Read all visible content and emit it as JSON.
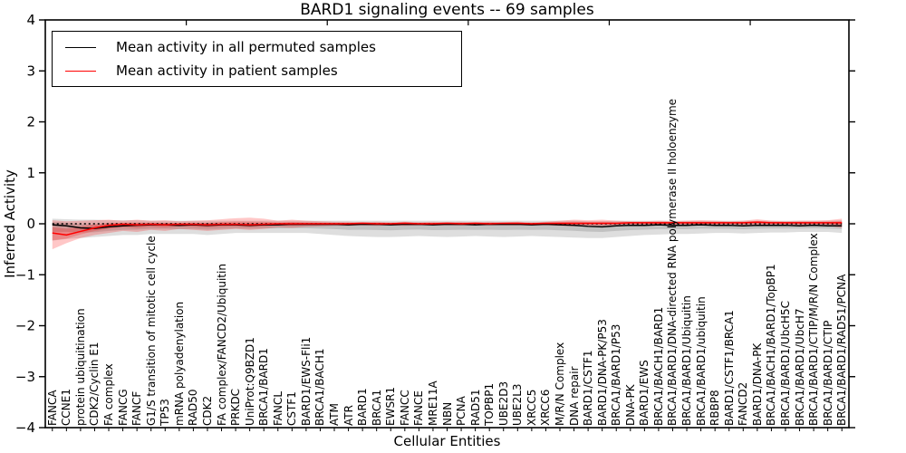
{
  "title": "BARD1 signaling events -- 69 samples",
  "axes": {
    "x_label": "Cellular Entities",
    "y_label": "Inferred Activity",
    "y_ticks": [
      "4",
      "3",
      "2",
      "1",
      "0",
      "−1",
      "−2",
      "−3",
      "−4"
    ]
  },
  "legend": {
    "items": [
      {
        "label": "Mean activity in all permuted samples",
        "color": "#000000"
      },
      {
        "label": "Mean activity in patient samples",
        "color": "#ff0000"
      }
    ]
  },
  "chart_data": {
    "type": "line",
    "title": "BARD1 signaling events -- 69 samples",
    "xlabel": "Cellular Entities",
    "ylabel": "Inferred Activity",
    "ylim": [
      -4,
      4
    ],
    "grid": false,
    "legend_position": "upper left",
    "zero_line": {
      "style": "dotted",
      "color": "#000000",
      "y": 0
    },
    "categories": [
      "FANCA",
      "CCNE1",
      "protein ubiquitination",
      "CDK2/Cyclin E1",
      "FA complex",
      "FANCG",
      "FANCF",
      "G1/S transition of mitotic cell cycle",
      "TP53",
      "mRNA polyadenylation",
      "RAD50",
      "CDK2",
      "FA complex/FANCD2/Ubiquitin",
      "PRKDC",
      "UniProt:Q9BZD1",
      "BRCA1/BARD1",
      "FANCL",
      "CSTF1",
      "BARD1/EWS-Fli1",
      "BRCA1/BACH1",
      "ATM",
      "ATR",
      "BARD1",
      "BRCA1",
      "EWSR1",
      "FANCC",
      "FANCE",
      "MRE11A",
      "NBN",
      "PCNA",
      "RAD51",
      "TOPBP1",
      "UBE2D3",
      "UBE2L3",
      "XRCC5",
      "XRCC6",
      "M/R/N Complex",
      "DNA repair",
      "BARD1/CSTF1",
      "BARD1/DNA-PK/P53",
      "BRCA1/BARD1/P53",
      "DNA-PK",
      "BARD1/EWS",
      "BRCA1/BACH1/BARD1",
      "BRCA1/BARD1/DNA-directed RNA polymerase II holoenzyme",
      "BRCA1/BARD1/Ubiquitin",
      "BRCA1/BARD1/ubiquitin",
      "RBBP8",
      "BARD1/CSTF1/BRCA1",
      "FANCD2",
      "BARD1/DNA-PK",
      "BRCA1/BACH1/BARD1/TopBP1",
      "BRCA1/BARD1/UbcH5C",
      "BRCA1/BARD1/UbcH7",
      "BRCA1/BARD1/CTIP/M/R/N Complex",
      "BRCA1/BARD1/CTIP",
      "BRCA1/BARD1/RAD51/PCNA"
    ],
    "series": [
      {
        "name": "Mean activity in all permuted samples",
        "color": "#000000",
        "values": [
          -0.02,
          -0.04,
          -0.08,
          -0.09,
          -0.06,
          -0.04,
          -0.03,
          -0.02,
          -0.02,
          -0.03,
          -0.02,
          -0.03,
          -0.02,
          -0.02,
          -0.03,
          -0.02,
          -0.02,
          -0.01,
          -0.01,
          -0.01,
          -0.01,
          -0.02,
          -0.01,
          -0.01,
          -0.02,
          -0.01,
          -0.01,
          -0.02,
          -0.01,
          -0.01,
          -0.02,
          -0.01,
          -0.01,
          -0.01,
          -0.02,
          -0.01,
          -0.02,
          -0.03,
          -0.05,
          -0.06,
          -0.04,
          -0.03,
          -0.03,
          -0.02,
          -0.03,
          -0.03,
          -0.02,
          -0.03,
          -0.03,
          -0.04,
          -0.03,
          -0.03,
          -0.03,
          -0.04,
          -0.03,
          -0.04,
          -0.04
        ]
      },
      {
        "name": "Mean activity in patient samples",
        "color": "#ff0000",
        "values": [
          -0.18,
          -0.22,
          -0.15,
          -0.08,
          -0.03,
          -0.01,
          -0.02,
          -0.01,
          -0.02,
          -0.01,
          -0.01,
          -0.02,
          -0.01,
          -0.01,
          -0.02,
          -0.01,
          0.0,
          0.0,
          0.0,
          0.0,
          0.0,
          0.0,
          0.01,
          0.0,
          0.0,
          0.01,
          0.0,
          0.0,
          0.01,
          0.0,
          0.01,
          0.0,
          0.01,
          0.01,
          0.0,
          0.01,
          0.01,
          0.01,
          0.01,
          0.01,
          0.01,
          0.02,
          0.02,
          0.02,
          0.02,
          0.02,
          0.02,
          0.02,
          0.02,
          0.02,
          0.03,
          0.02,
          0.02,
          0.02,
          0.02,
          0.02,
          0.02
        ]
      }
    ],
    "bands": [
      {
        "name": "permuted-samples-range",
        "color": "#000000",
        "opacity": 0.13,
        "upper": [
          0.1,
          0.09,
          0.08,
          0.08,
          0.07,
          0.07,
          0.07,
          0.06,
          0.06,
          0.06,
          0.06,
          0.06,
          0.06,
          0.06,
          0.06,
          0.06,
          0.06,
          0.06,
          0.06,
          0.06,
          0.06,
          0.06,
          0.06,
          0.06,
          0.06,
          0.06,
          0.06,
          0.06,
          0.06,
          0.06,
          0.06,
          0.06,
          0.06,
          0.06,
          0.06,
          0.06,
          0.06,
          0.06,
          0.05,
          0.05,
          0.06,
          0.06,
          0.06,
          0.06,
          0.06,
          0.06,
          0.06,
          0.06,
          0.06,
          0.06,
          0.06,
          0.06,
          0.06,
          0.06,
          0.06,
          0.06,
          0.07
        ],
        "lower": [
          -0.33,
          -0.3,
          -0.28,
          -0.26,
          -0.24,
          -0.22,
          -0.22,
          -0.2,
          -0.2,
          -0.2,
          -0.2,
          -0.22,
          -0.2,
          -0.18,
          -0.18,
          -0.18,
          -0.18,
          -0.18,
          -0.18,
          -0.2,
          -0.22,
          -0.24,
          -0.25,
          -0.26,
          -0.26,
          -0.25,
          -0.24,
          -0.25,
          -0.26,
          -0.25,
          -0.24,
          -0.25,
          -0.26,
          -0.25,
          -0.24,
          -0.25,
          -0.26,
          -0.27,
          -0.28,
          -0.28,
          -0.26,
          -0.24,
          -0.22,
          -0.21,
          -0.2,
          -0.2,
          -0.19,
          -0.18,
          -0.18,
          -0.19,
          -0.18,
          -0.17,
          -0.17,
          -0.16,
          -0.16,
          -0.16,
          -0.18
        ]
      },
      {
        "name": "patient-samples-range",
        "color": "#ff0000",
        "opacity": 0.22,
        "upper": [
          0.07,
          0.05,
          0.06,
          0.07,
          0.08,
          0.06,
          0.08,
          0.06,
          0.07,
          0.05,
          0.06,
          0.07,
          0.09,
          0.11,
          0.12,
          0.1,
          0.06,
          0.08,
          0.06,
          0.05,
          0.04,
          0.04,
          0.03,
          0.04,
          0.03,
          0.04,
          0.03,
          0.04,
          0.03,
          0.04,
          0.03,
          0.04,
          0.03,
          0.04,
          0.03,
          0.04,
          0.06,
          0.08,
          0.07,
          0.08,
          0.06,
          0.05,
          0.05,
          0.06,
          0.05,
          0.06,
          0.07,
          0.06,
          0.05,
          0.06,
          0.09,
          0.06,
          0.05,
          0.06,
          0.06,
          0.07,
          0.1
        ],
        "lower": [
          -0.5,
          -0.38,
          -0.28,
          -0.22,
          -0.18,
          -0.14,
          -0.16,
          -0.12,
          -0.14,
          -0.1,
          -0.12,
          -0.14,
          -0.12,
          -0.1,
          -0.12,
          -0.1,
          -0.07,
          -0.08,
          -0.06,
          -0.05,
          -0.04,
          -0.04,
          -0.03,
          -0.04,
          -0.03,
          -0.04,
          -0.03,
          -0.03,
          -0.03,
          -0.03,
          -0.03,
          -0.03,
          -0.03,
          -0.03,
          -0.03,
          -0.03,
          -0.04,
          -0.05,
          -0.04,
          -0.04,
          -0.03,
          -0.03,
          -0.02,
          -0.03,
          -0.02,
          -0.03,
          -0.03,
          -0.03,
          -0.02,
          -0.03,
          -0.03,
          -0.02,
          -0.03,
          -0.03,
          -0.03,
          -0.04,
          -0.08
        ]
      }
    ]
  }
}
